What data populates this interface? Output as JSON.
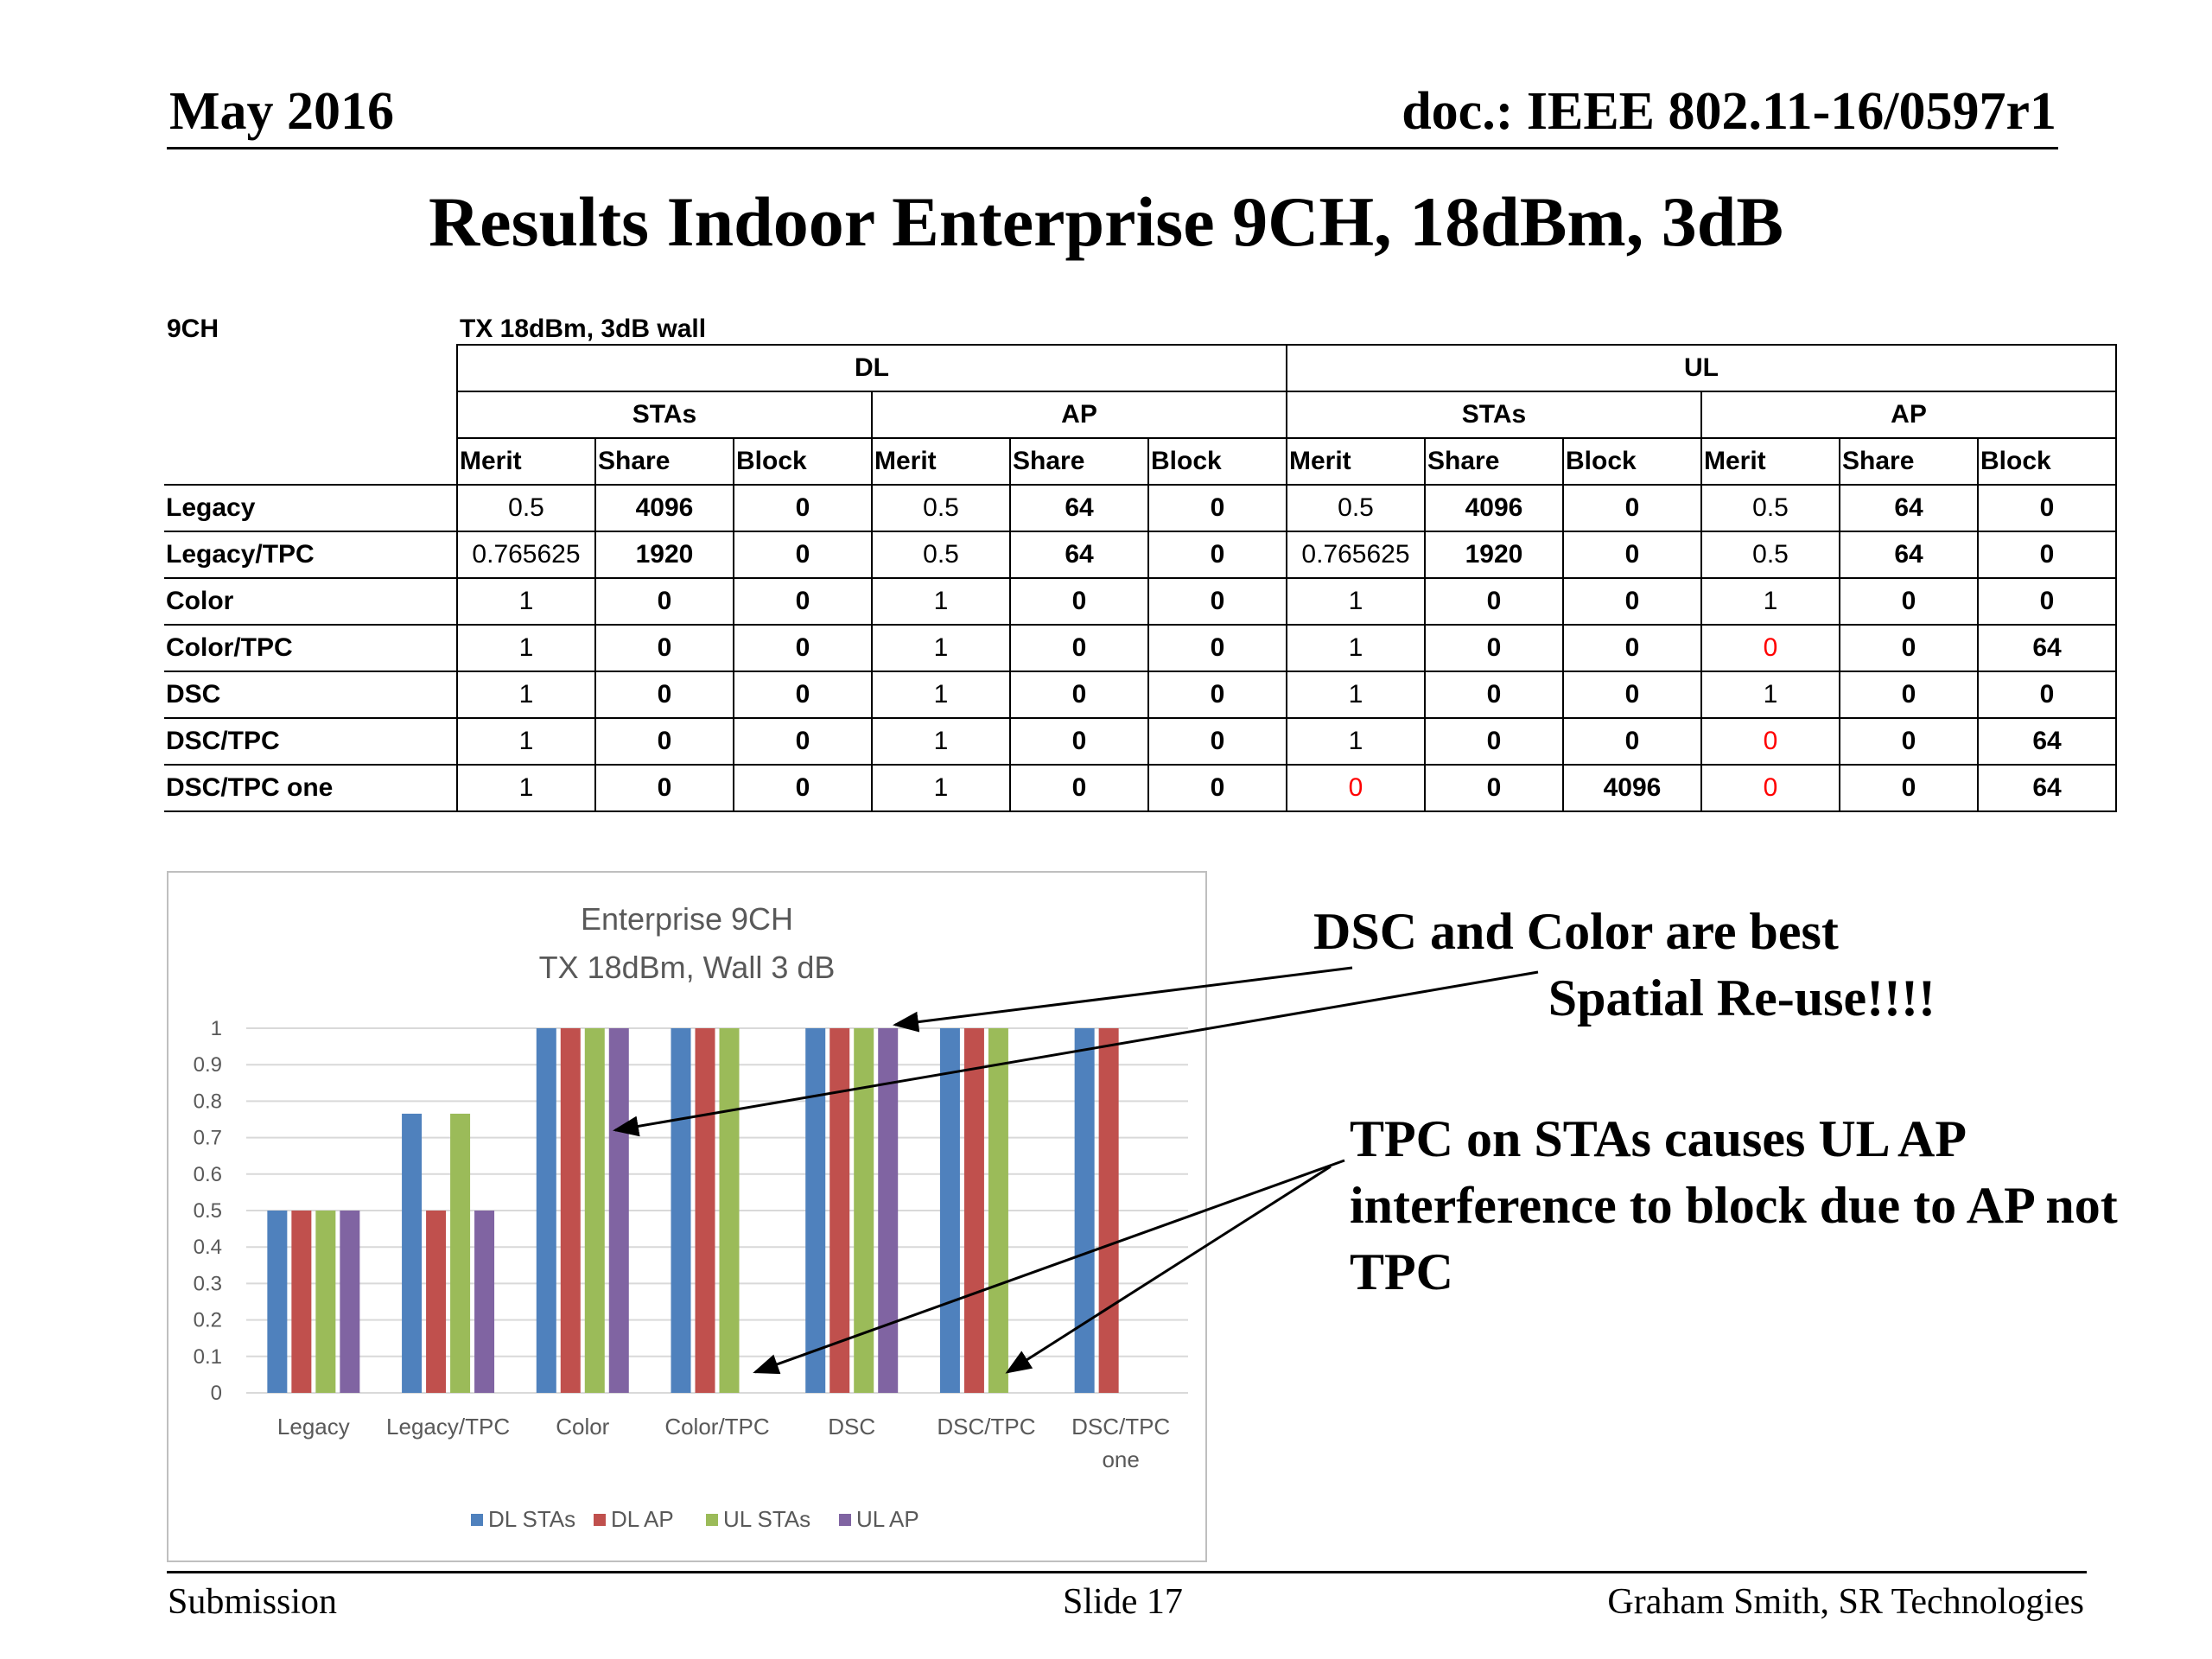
{
  "header": {
    "date": "May 2016",
    "doc": "doc.: IEEE 802.11-16/0597r1"
  },
  "title": "Results Indoor Enterprise 9CH, 18dBm, 3dB",
  "table": {
    "label_left": "9CH",
    "label_right": "TX 18dBm, 3dB wall",
    "groups": [
      "DL",
      "UL"
    ],
    "subgroups": [
      "STAs",
      "AP",
      "STAs",
      "AP"
    ],
    "columns": [
      "Merit",
      "Share",
      "Block",
      "Merit",
      "Share",
      "Block",
      "Merit",
      "Share",
      "Block",
      "Merit",
      "Share",
      "Block"
    ],
    "rows": [
      {
        "label": "Legacy",
        "cells": [
          "0.5",
          "4096",
          "0",
          "0.5",
          "64",
          "0",
          "0.5",
          "4096",
          "0",
          "0.5",
          "64",
          "0"
        ]
      },
      {
        "label": "Legacy/TPC",
        "cells": [
          "0.765625",
          "1920",
          "0",
          "0.5",
          "64",
          "0",
          "0.765625",
          "1920",
          "0",
          "0.5",
          "64",
          "0"
        ]
      },
      {
        "label": "Color",
        "cells": [
          "1",
          "0",
          "0",
          "1",
          "0",
          "0",
          "1",
          "0",
          "0",
          "1",
          "0",
          "0"
        ]
      },
      {
        "label": "Color/TPC",
        "cells": [
          "1",
          "0",
          "0",
          "1",
          "0",
          "0",
          "1",
          "0",
          "0",
          "0",
          "0",
          "64"
        ]
      },
      {
        "label": "DSC",
        "cells": [
          "1",
          "0",
          "0",
          "1",
          "0",
          "0",
          "1",
          "0",
          "0",
          "1",
          "0",
          "0"
        ]
      },
      {
        "label": "DSC/TPC",
        "cells": [
          "1",
          "0",
          "0",
          "1",
          "0",
          "0",
          "1",
          "0",
          "0",
          "0",
          "0",
          "64"
        ]
      },
      {
        "label": "DSC/TPC one",
        "cells": [
          "1",
          "0",
          "0",
          "1",
          "0",
          "0",
          "0",
          "0",
          "4096",
          "0",
          "0",
          "64"
        ]
      }
    ],
    "highlight_color": "#ff0000"
  },
  "chart_data": {
    "type": "bar",
    "title": "Enterprise 9CH",
    "subtitle": "TX 18dBm, Wall 3 dB",
    "categories": [
      "Legacy",
      "Legacy/TPC",
      "Color",
      "Color/TPC",
      "DSC",
      "DSC/TPC",
      "DSC/TPC one"
    ],
    "series": [
      {
        "name": "DL STAs",
        "color": "#4f81bd",
        "values": [
          0.5,
          0.765625,
          1,
          1,
          1,
          1,
          1
        ]
      },
      {
        "name": "DL AP",
        "color": "#c0504d",
        "values": [
          0.5,
          0.5,
          1,
          1,
          1,
          1,
          1
        ]
      },
      {
        "name": "UL STAs",
        "color": "#9bbb59",
        "values": [
          0.5,
          0.765625,
          1,
          1,
          1,
          1,
          0
        ]
      },
      {
        "name": "UL AP",
        "color": "#8064a2",
        "values": [
          0.5,
          0.5,
          1,
          0,
          1,
          0,
          0
        ]
      }
    ],
    "yticks": [
      "0",
      "0.1",
      "0.2",
      "0.3",
      "0.4",
      "0.5",
      "0.6",
      "0.7",
      "0.8",
      "0.9",
      "1"
    ],
    "ylim": [
      0,
      1
    ],
    "grid": true,
    "legend": "bottom"
  },
  "callouts": {
    "c1_line1": "DSC and Color are best",
    "c1_line2": "Spatial Re-use!!!!",
    "c2": "TPC on STAs causes UL AP interference to block due to AP not TPC"
  },
  "footer": {
    "left": "Submission",
    "center": "Slide 17",
    "right": "Graham Smith, SR Technologies"
  }
}
